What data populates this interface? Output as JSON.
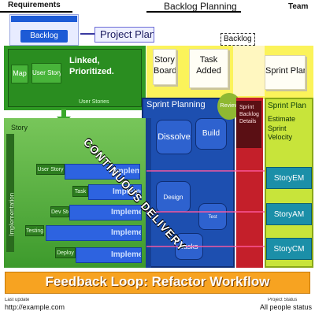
{
  "header": {
    "left_title": "Requirements",
    "center_title": "Backlog Planning",
    "right_title": "Team",
    "badge_label": "Backlog",
    "plan_button": "Project Plan",
    "backlog_tag": "Backlog"
  },
  "green_card": {
    "box_left": "Map",
    "box_mid": "User Story",
    "text": "Linked,\nPrioritized.",
    "caption": "User Stories"
  },
  "yellow_cards": [
    "Story\nBoard",
    "Task\nAdded",
    "Sprint Plan"
  ],
  "blue_board": {
    "title": "Sprint Planning",
    "chip": "Review",
    "blobs": [
      "Dissolve",
      "Build",
      "Design",
      "Test",
      "Tasks"
    ]
  },
  "red_column": {
    "lines": "Sprint\nBacklog\nDetails"
  },
  "right_panel": {
    "title": "Sprint Plan",
    "text": "Estimate\nSprint\nVelocity",
    "buttons": [
      "StoryEM",
      "StoryAM",
      "StoryCM"
    ]
  },
  "lane": {
    "title": "Story",
    "vertical": "Implementation",
    "rows": [
      {
        "tag": "User Story",
        "bar": "Implement"
      },
      {
        "tag": "Task",
        "bar": "Implement"
      },
      {
        "tag": "Dev Story",
        "bar": "Implement"
      },
      {
        "tag": "Testing",
        "bar": "Implement"
      },
      {
        "tag": "Deploy",
        "bar": "Implement"
      }
    ]
  },
  "banner": {
    "text": "Feedback Loop: Refactor Workflow",
    "watermark": "CONTINUOUS DELIVERY"
  },
  "footer": {
    "left_small": "Last update",
    "left_url": "http://example.com",
    "right_small": "Project Status",
    "right_text": "All people status"
  },
  "colors": {
    "orange": "#f7a321",
    "blue": "#1d4fb0",
    "green": "#2f9a24",
    "red": "#c41f2a"
  }
}
